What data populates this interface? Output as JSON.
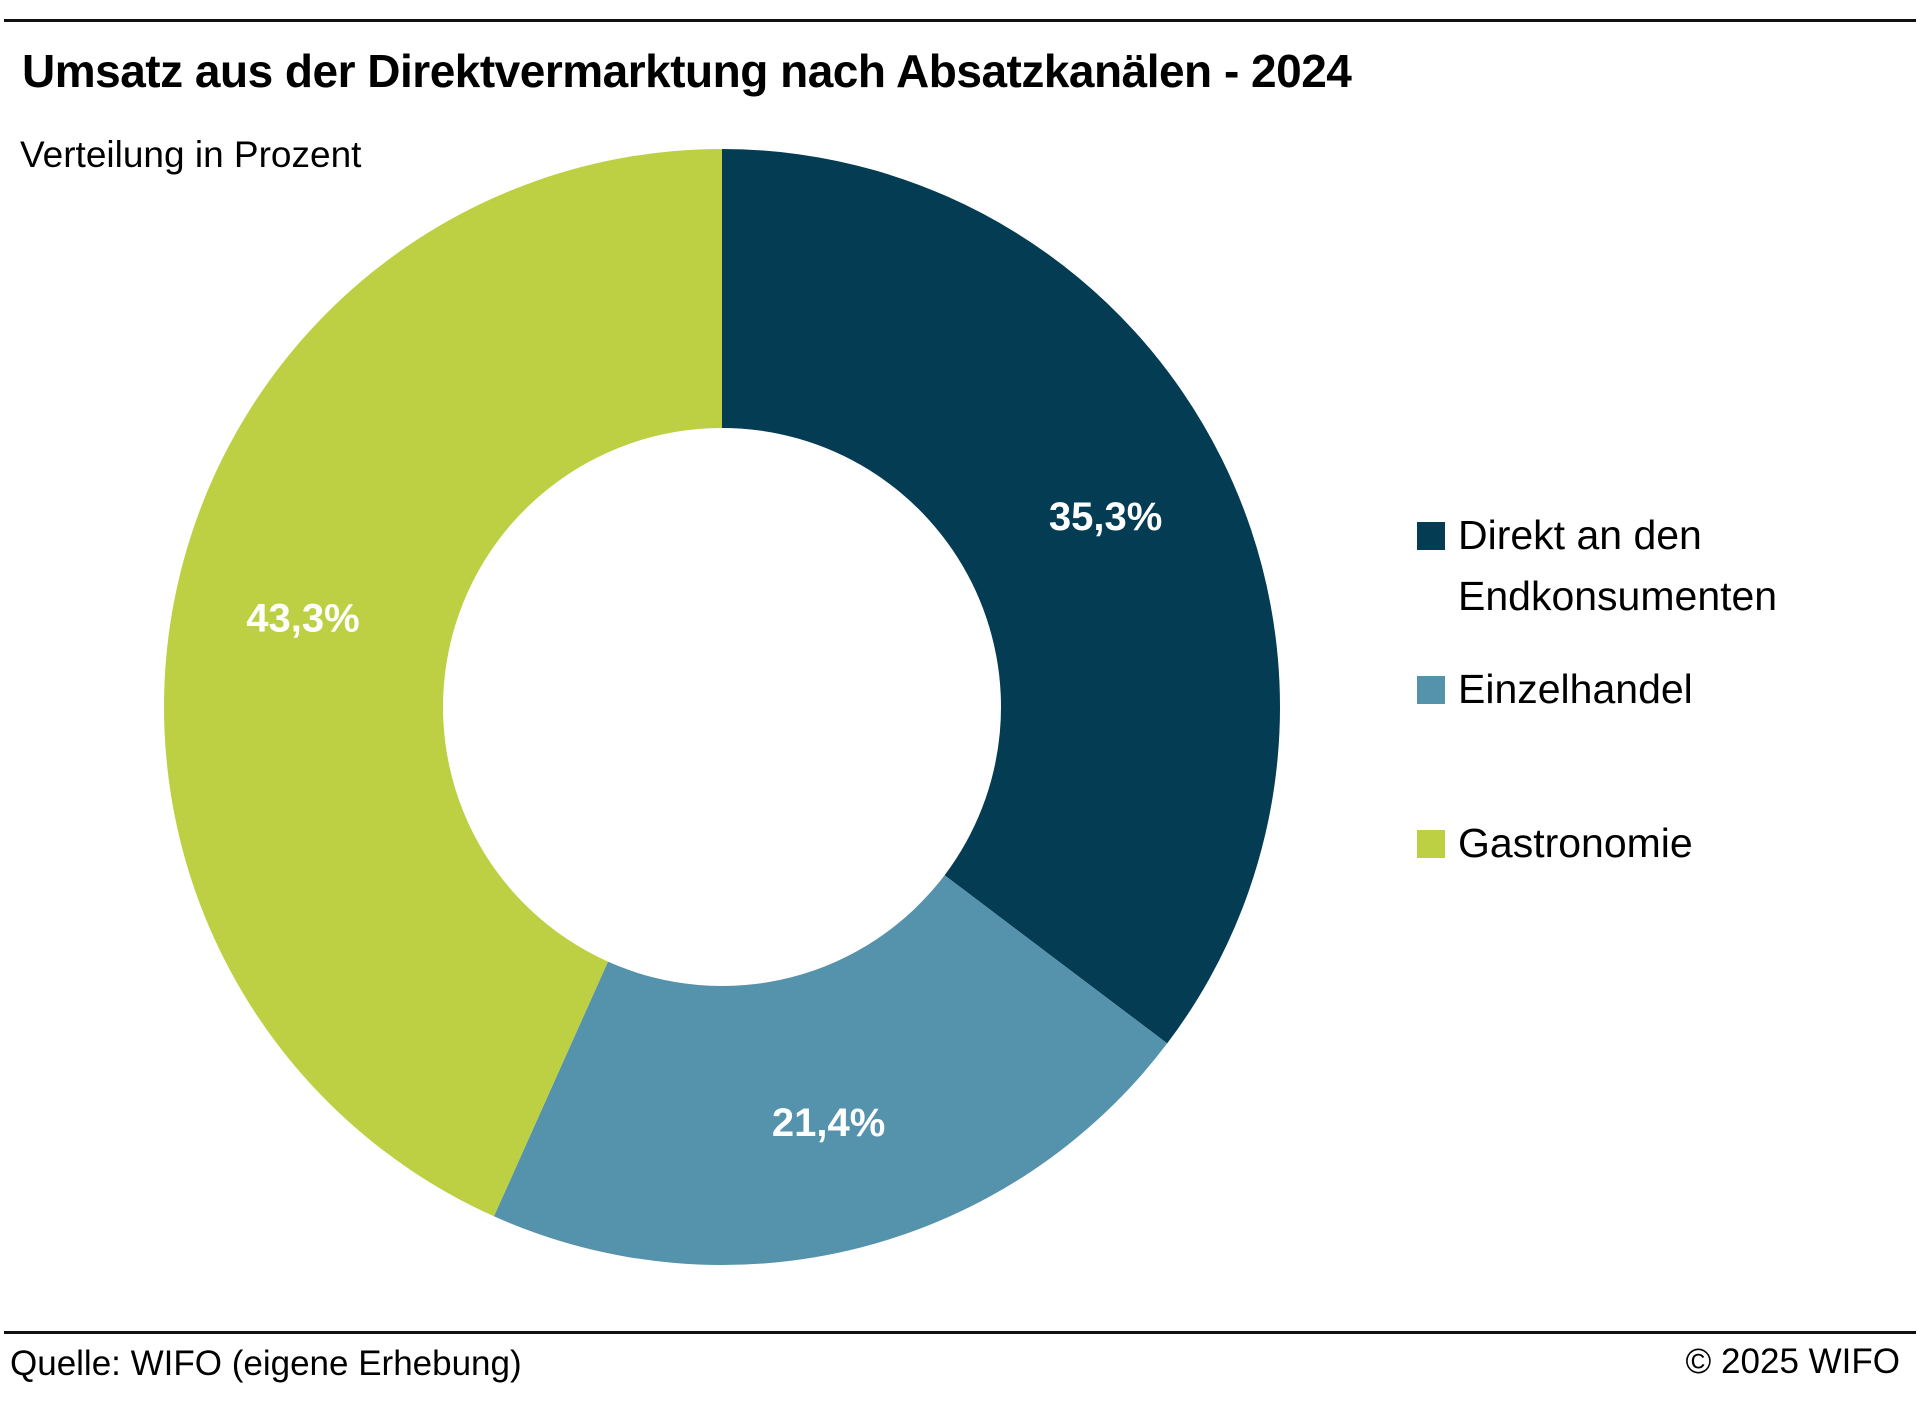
{
  "chart_data": {
    "type": "pie",
    "variant": "donut",
    "title": "Umsatz aus der Direktvermarktung nach Absatzkanälen - 2024",
    "subtitle": "Verteilung in Prozent",
    "categories": [
      "Direkt an den Endkonsumenten",
      "Einzelhandel",
      "Gastronomie"
    ],
    "values": [
      35.3,
      21.4,
      43.3
    ],
    "data_labels": [
      "35,3%",
      "21,4%",
      "43,3%"
    ],
    "colors": [
      "#043c54",
      "#5592ab",
      "#bdd043"
    ],
    "legend_position": "right",
    "unit": "%"
  },
  "legend": {
    "items": [
      {
        "line1": "Direkt an den",
        "line2": "Endkonsumenten"
      },
      {
        "line1": "Einzelhandel",
        "line2": ""
      },
      {
        "line1": "Gastronomie",
        "line2": ""
      }
    ]
  },
  "footer": {
    "source": "Quelle: WIFO (eigene Erhebung)",
    "copyright": "© 2025 WIFO"
  }
}
